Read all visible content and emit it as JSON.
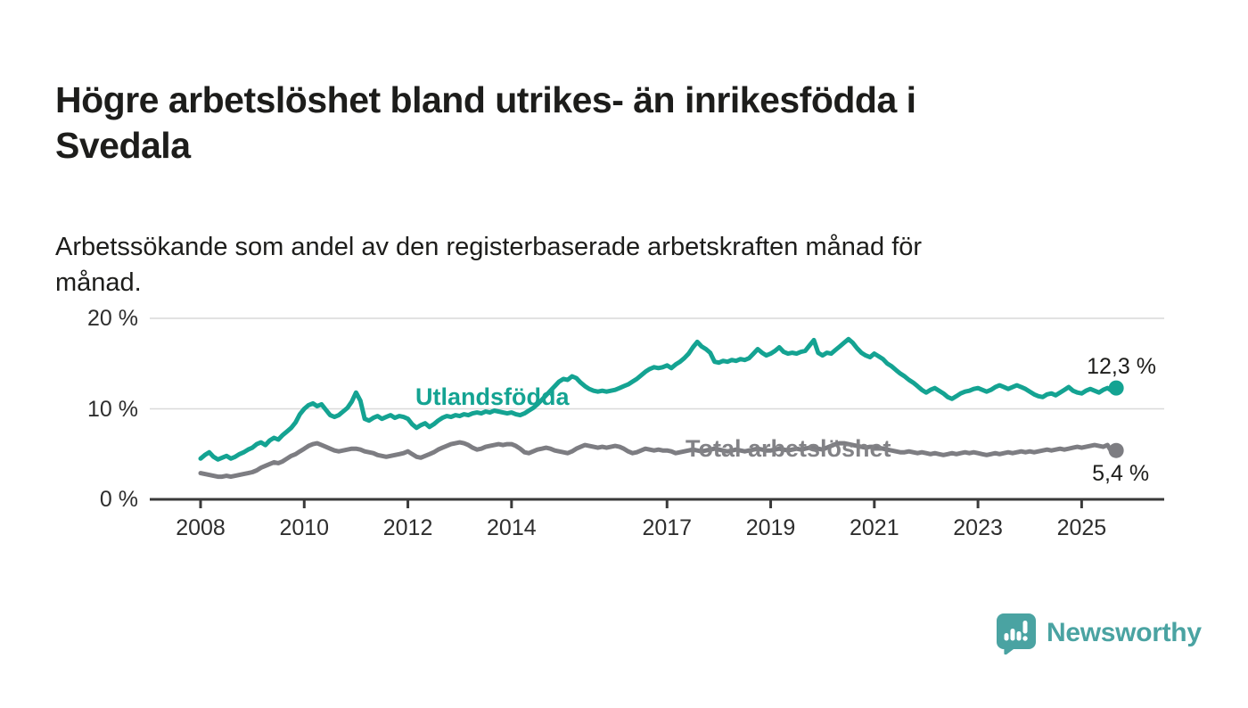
{
  "header": {
    "title": "Högre arbetslöshet bland utrikes- än inrikesfödda i Svedala",
    "title_lines": [
      "Högre arbetslöshet bland utrikes- än inrikesfödda i",
      "Svedala"
    ],
    "subtitle": "Arbetssökande som andel av den registerbaserade arbetskraften månad för månad.",
    "subtitle_lines": [
      "Arbetssökande som andel av den registerbaserade arbetskraften månad för",
      "månad."
    ]
  },
  "chart_data": {
    "type": "line",
    "unit": "%",
    "frequency": "monthly",
    "x_start": "2008-01",
    "x_end": "2025-09",
    "x_tick_labels": [
      "2008",
      "2010",
      "2012",
      "2014",
      "2017",
      "2019",
      "2021",
      "2023",
      "2025"
    ],
    "y_ticks": [
      {
        "value": 0,
        "label": "0 %"
      },
      {
        "value": 10,
        "label": "10 %"
      },
      {
        "value": 20,
        "label": "20 %"
      }
    ],
    "ylim": [
      0,
      21.7
    ],
    "grid": "horizontal",
    "grid_color": "#d9d9d9",
    "axis_color": "#3a3a3a",
    "series": [
      {
        "name": "Utlandsfödda",
        "color": "#14a392",
        "end_label": "12,3 %",
        "last_value": 12.3,
        "values": [
          4.5,
          4.9,
          5.2,
          4.7,
          4.4,
          4.6,
          4.8,
          4.5,
          4.7,
          5.0,
          5.2,
          5.5,
          5.7,
          6.1,
          6.3,
          6.0,
          6.5,
          6.8,
          6.6,
          7.1,
          7.5,
          7.9,
          8.5,
          9.4,
          10.0,
          10.4,
          10.6,
          10.3,
          10.5,
          9.9,
          9.3,
          9.1,
          9.3,
          9.7,
          10.1,
          10.8,
          11.8,
          10.9,
          8.9,
          8.7,
          9.0,
          9.2,
          8.9,
          9.1,
          9.3,
          9.0,
          9.2,
          9.1,
          8.9,
          8.3,
          7.9,
          8.2,
          8.4,
          8.0,
          8.3,
          8.7,
          9.0,
          9.2,
          9.1,
          9.3,
          9.2,
          9.4,
          9.3,
          9.5,
          9.6,
          9.5,
          9.7,
          9.6,
          9.8,
          9.7,
          9.6,
          9.5,
          9.6,
          9.4,
          9.3,
          9.5,
          9.8,
          10.1,
          10.5,
          11.0,
          11.5,
          12.0,
          12.5,
          13.0,
          13.3,
          13.2,
          13.6,
          13.4,
          12.9,
          12.5,
          12.2,
          12.0,
          11.9,
          12.0,
          11.9,
          12.0,
          12.1,
          12.3,
          12.5,
          12.7,
          13.0,
          13.3,
          13.7,
          14.1,
          14.4,
          14.6,
          14.5,
          14.6,
          14.8,
          14.5,
          14.9,
          15.2,
          15.6,
          16.1,
          16.8,
          17.4,
          16.9,
          16.6,
          16.2,
          15.2,
          15.1,
          15.3,
          15.2,
          15.4,
          15.3,
          15.5,
          15.4,
          15.6,
          16.1,
          16.6,
          16.2,
          15.9,
          16.1,
          16.4,
          16.8,
          16.3,
          16.1,
          16.2,
          16.1,
          16.3,
          16.4,
          17.0,
          17.6,
          16.2,
          15.9,
          16.2,
          16.1,
          16.5,
          16.9,
          17.3,
          17.7,
          17.3,
          16.7,
          16.2,
          15.9,
          15.7,
          16.1,
          15.8,
          15.5,
          15.0,
          14.7,
          14.3,
          13.9,
          13.6,
          13.2,
          12.9,
          12.5,
          12.1,
          11.8,
          12.1,
          12.3,
          12.0,
          11.7,
          11.3,
          11.1,
          11.4,
          11.7,
          11.9,
          12.0,
          12.2,
          12.3,
          12.1,
          11.9,
          12.1,
          12.4,
          12.6,
          12.4,
          12.2,
          12.4,
          12.6,
          12.4,
          12.2,
          11.9,
          11.6,
          11.4,
          11.3,
          11.6,
          11.7,
          11.5,
          11.8,
          12.1,
          12.4,
          12.0,
          11.8,
          11.7,
          12.0,
          12.2,
          12.0,
          11.8,
          12.1,
          12.3,
          12.0,
          12.3
        ]
      },
      {
        "name": "Total arbetslöshet",
        "color": "#7d7d82",
        "end_label": "5,4 %",
        "last_value": 5.4,
        "values": [
          2.9,
          2.8,
          2.7,
          2.6,
          2.5,
          2.5,
          2.6,
          2.5,
          2.6,
          2.7,
          2.8,
          2.9,
          3.0,
          3.2,
          3.5,
          3.7,
          3.9,
          4.1,
          4.0,
          4.2,
          4.5,
          4.8,
          5.0,
          5.3,
          5.6,
          5.9,
          6.1,
          6.2,
          6.0,
          5.8,
          5.6,
          5.4,
          5.3,
          5.4,
          5.5,
          5.6,
          5.6,
          5.5,
          5.3,
          5.2,
          5.1,
          4.9,
          4.8,
          4.7,
          4.8,
          4.9,
          5.0,
          5.1,
          5.3,
          5.0,
          4.7,
          4.6,
          4.8,
          5.0,
          5.2,
          5.5,
          5.7,
          5.9,
          6.1,
          6.2,
          6.3,
          6.2,
          6.0,
          5.7,
          5.5,
          5.6,
          5.8,
          5.9,
          6.0,
          6.1,
          6.0,
          6.1,
          6.1,
          5.9,
          5.6,
          5.2,
          5.1,
          5.3,
          5.5,
          5.6,
          5.7,
          5.6,
          5.4,
          5.3,
          5.2,
          5.1,
          5.3,
          5.6,
          5.8,
          6.0,
          5.9,
          5.8,
          5.7,
          5.8,
          5.7,
          5.8,
          5.9,
          5.8,
          5.6,
          5.3,
          5.1,
          5.2,
          5.4,
          5.6,
          5.5,
          5.4,
          5.5,
          5.4,
          5.4,
          5.3,
          5.1,
          5.2,
          5.3,
          5.4,
          5.5,
          5.4,
          5.3,
          5.4,
          5.5,
          5.6,
          5.5,
          5.4,
          5.3,
          5.4,
          5.5,
          5.4,
          5.3,
          5.4,
          5.5,
          5.6,
          5.5,
          5.4,
          5.4,
          5.5,
          5.6,
          5.5,
          5.4,
          5.5,
          5.6,
          5.5,
          5.6,
          5.7,
          5.8,
          5.6,
          5.5,
          5.7,
          5.9,
          6.1,
          6.2,
          6.2,
          6.1,
          6.0,
          5.9,
          5.8,
          5.7,
          5.8,
          5.8,
          5.7,
          5.6,
          5.5,
          5.4,
          5.3,
          5.2,
          5.2,
          5.3,
          5.2,
          5.1,
          5.2,
          5.1,
          5.0,
          5.1,
          5.0,
          4.9,
          5.0,
          5.1,
          5.0,
          5.1,
          5.2,
          5.1,
          5.2,
          5.1,
          5.0,
          4.9,
          5.0,
          5.1,
          5.0,
          5.1,
          5.2,
          5.1,
          5.2,
          5.3,
          5.2,
          5.3,
          5.2,
          5.3,
          5.4,
          5.5,
          5.4,
          5.5,
          5.6,
          5.5,
          5.6,
          5.7,
          5.8,
          5.7,
          5.8,
          5.9,
          6.0,
          5.9,
          5.8,
          6.0,
          5.2,
          5.4
        ]
      }
    ]
  },
  "footer": {
    "brand": "Newsworthy",
    "brand_color": "#4aa3a2",
    "logo_icon": "bar-chart-speech-bubble-icon"
  }
}
